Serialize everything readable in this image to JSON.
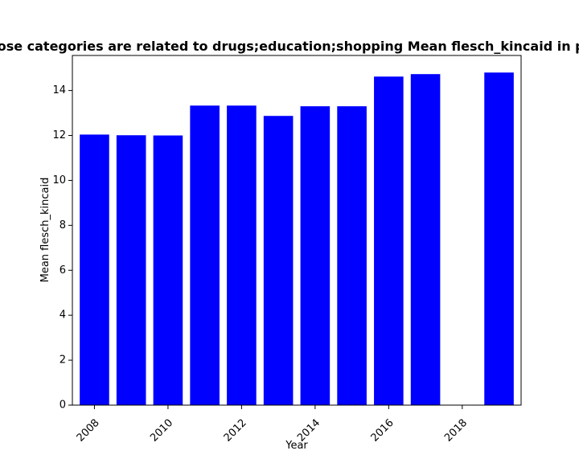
{
  "chart_data": {
    "type": "bar",
    "title": "Websites whose categories are related to drugs;education;shopping Mean flesch_kincaid in privacy policies",
    "xlabel": "Year",
    "ylabel": "Mean flesch_kincaid",
    "x": [
      2008,
      2009,
      2010,
      2011,
      2012,
      2013,
      2014,
      2015,
      2016,
      2017,
      2019
    ],
    "values": [
      12.04,
      12.01,
      12.0,
      13.33,
      13.33,
      12.87,
      13.3,
      13.3,
      14.62,
      14.73,
      14.8
    ],
    "xlim": [
      2007.4,
      2019.6
    ],
    "ylim": [
      0,
      15.56
    ],
    "xticks": [
      2008,
      2010,
      2012,
      2014,
      2016,
      2018
    ],
    "yticks": [
      0,
      2,
      4,
      6,
      8,
      10,
      12,
      14
    ],
    "grid": false,
    "bar_color": "#0000ff"
  }
}
